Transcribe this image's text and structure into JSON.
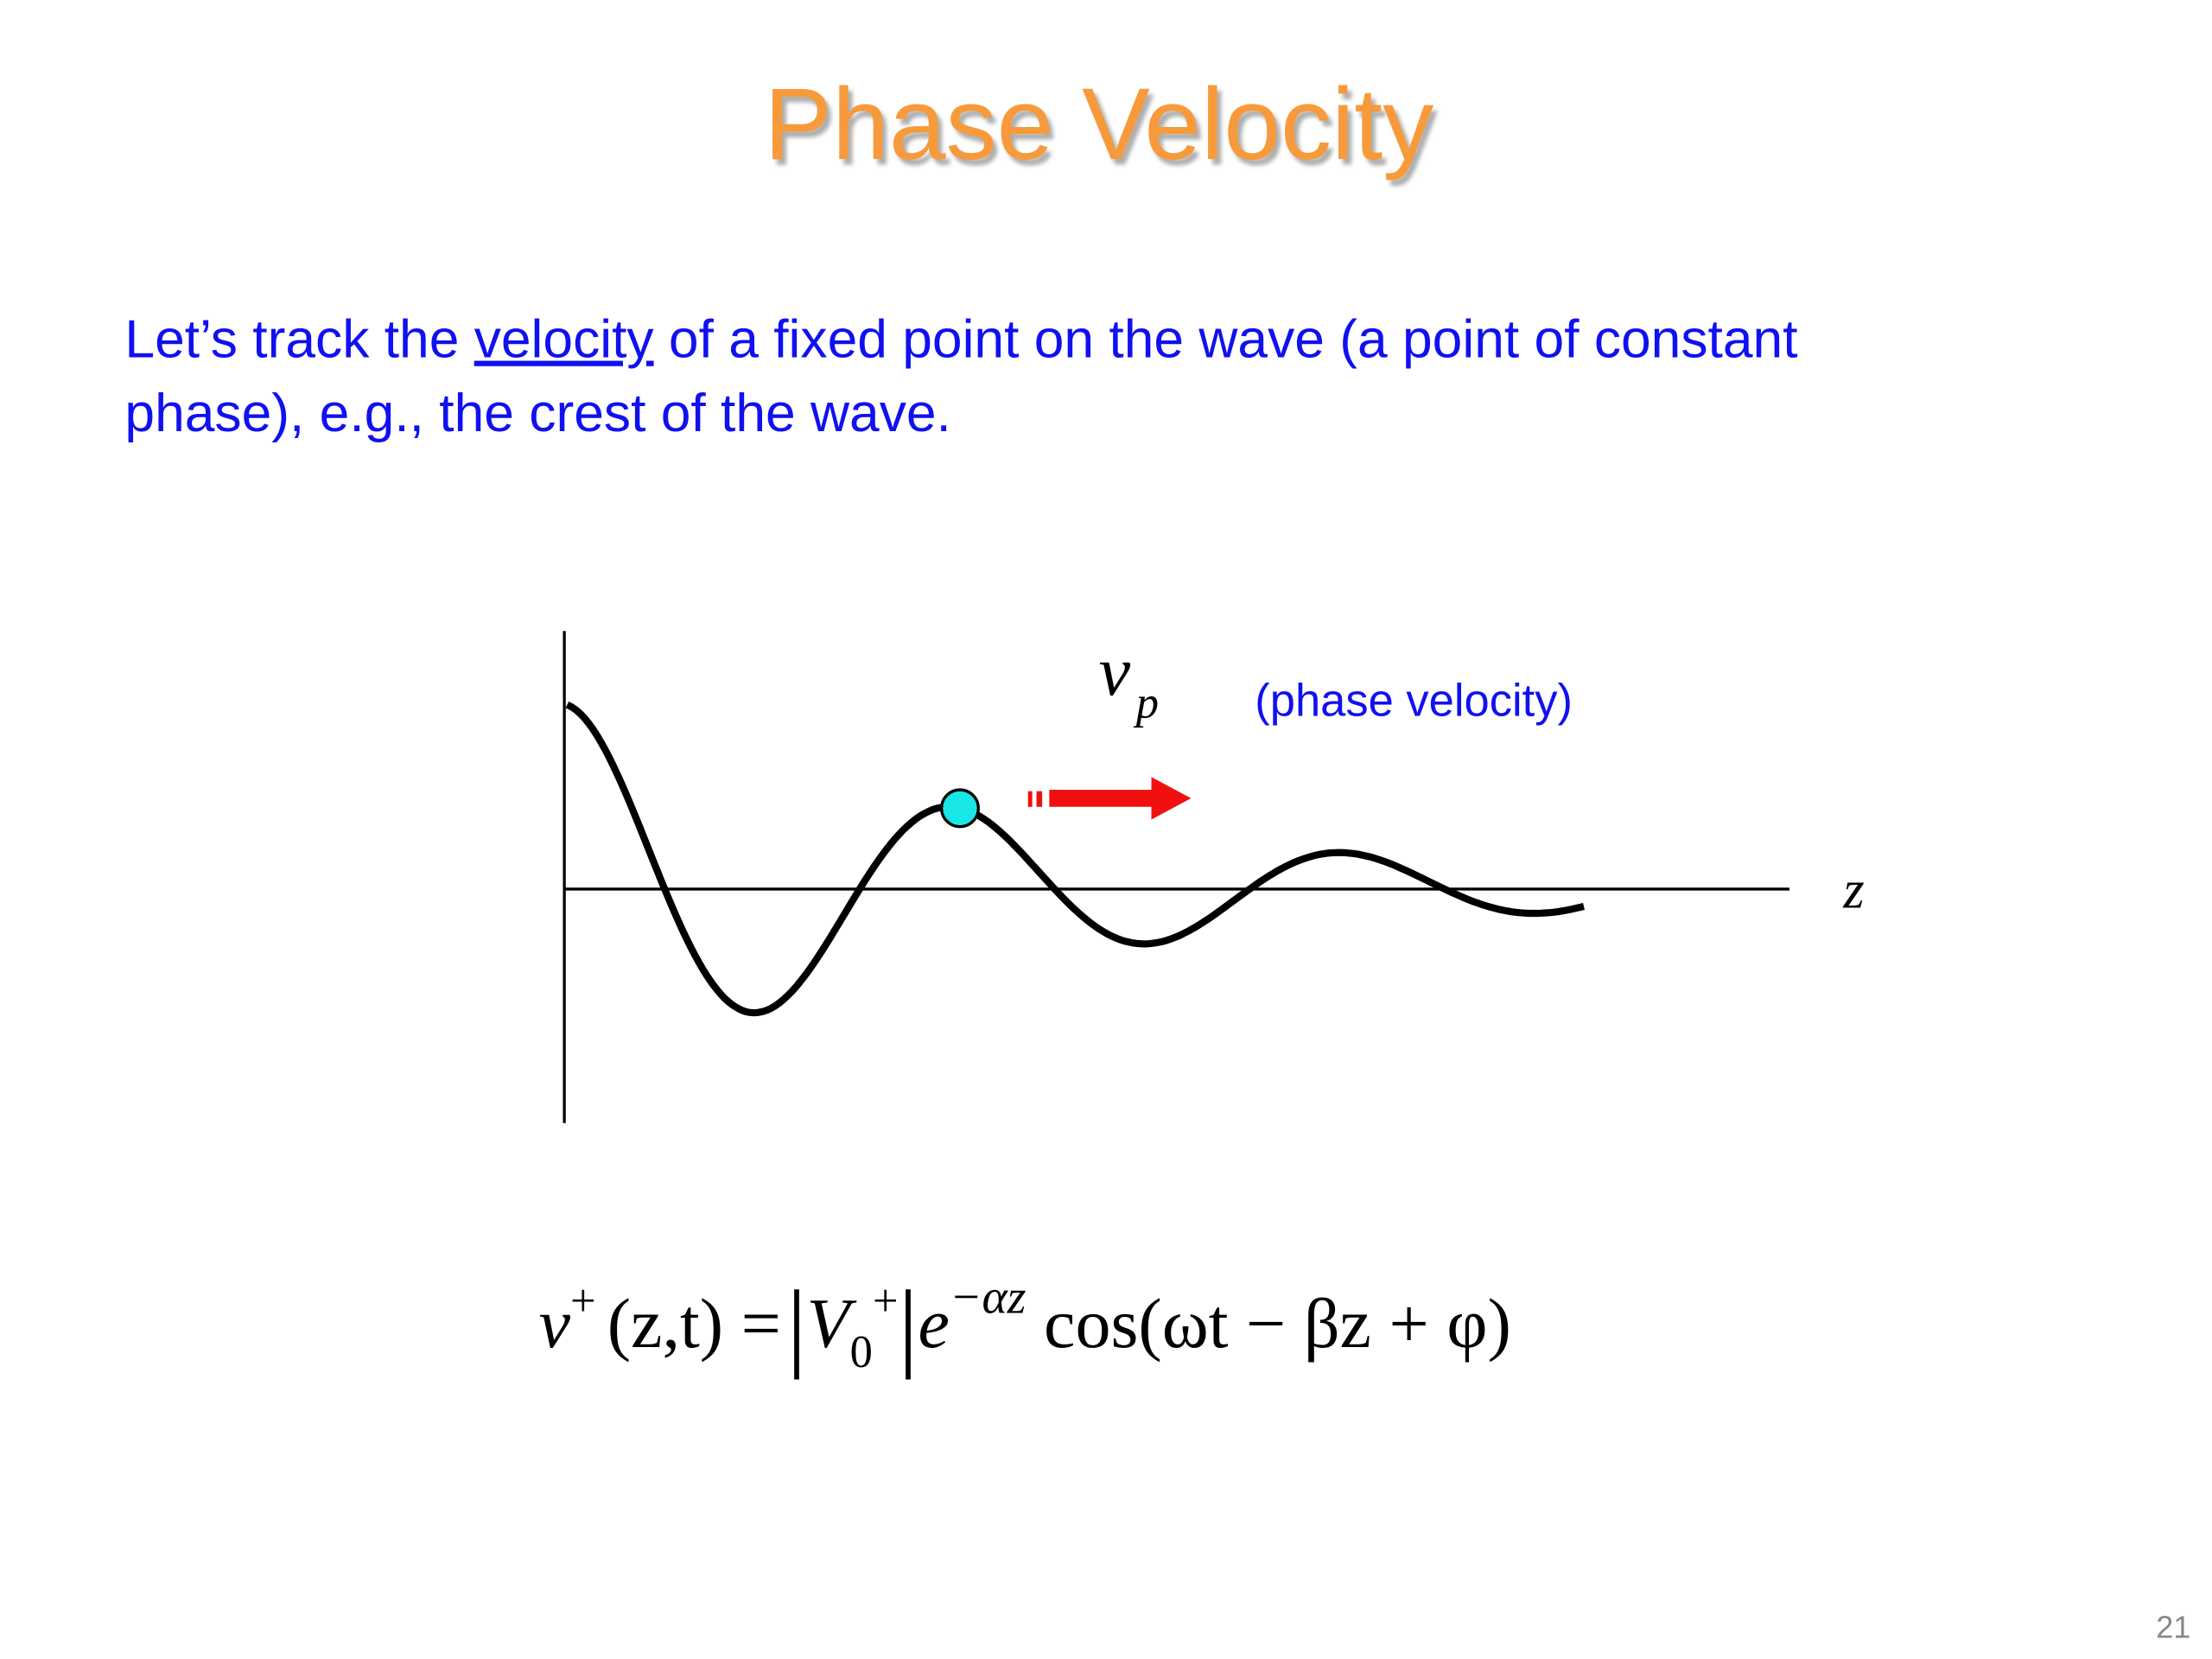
{
  "title": "Phase Velocity",
  "body": {
    "line1_before": "Let’s track the ",
    "line1_underlined": "velocity",
    "line1_after": " of a fixed point on the wave (a point of constant",
    "line2": "phase), e.g., the crest of the wave."
  },
  "diagram": {
    "velocity_symbol": "v",
    "velocity_subscript": "p",
    "velocity_caption": "(phase velocity)",
    "axis_label": "z"
  },
  "equation": {
    "v": "v",
    "v_sup": "+",
    "args": "(z,t) =",
    "bar_open": "|",
    "V": "V",
    "V_sub": "0",
    "V_sup": "+",
    "bar_close": "|",
    "e": "e",
    "e_sup": "−αz",
    "rest": " cos(ωt − βz + φ)"
  },
  "page_number": "21"
}
